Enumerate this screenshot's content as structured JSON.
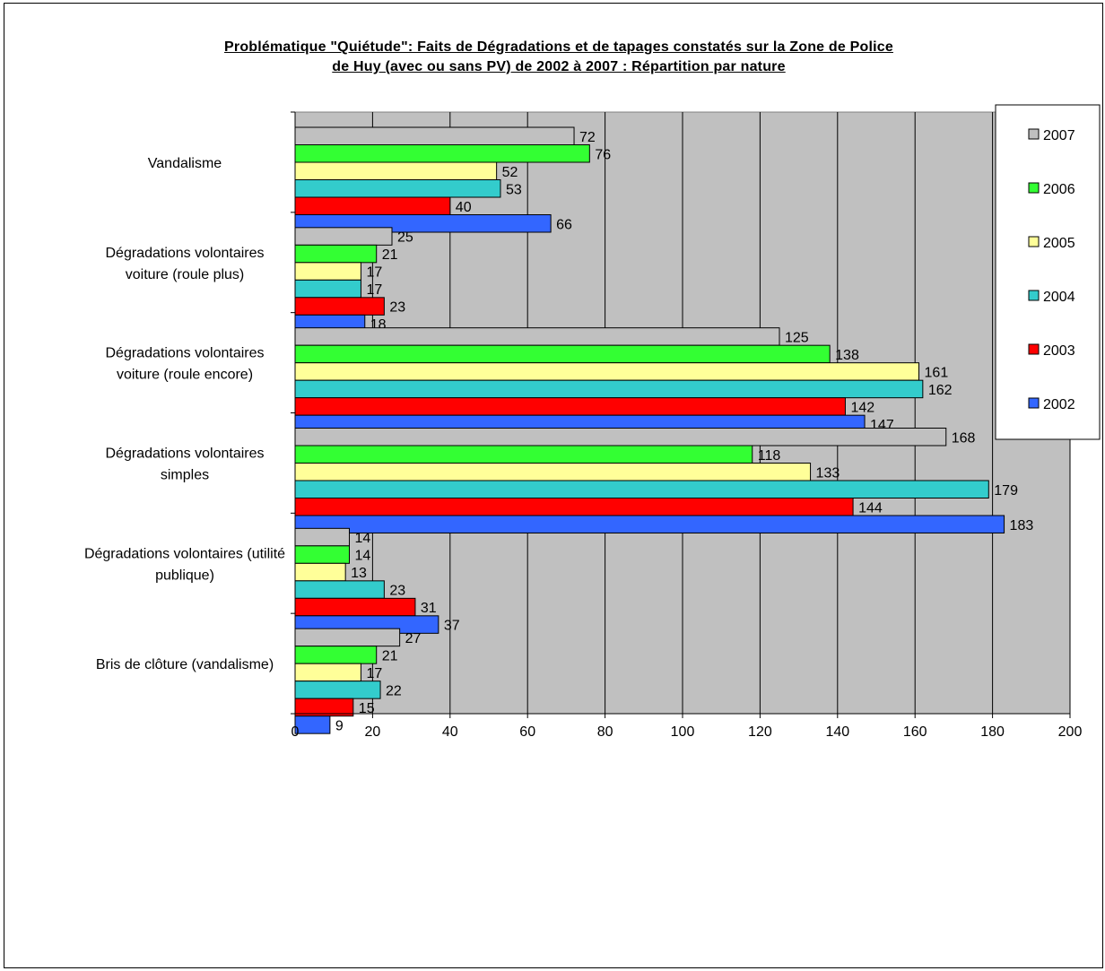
{
  "chart_data": {
    "type": "bar",
    "orientation": "horizontal",
    "title_line1": "Problématique \"Quiétude\": Faits de Dégradations et de tapages constatés sur la Zone de Police",
    "title_line2": "de Huy (avec ou sans PV) de 2002 à 2007 : Répartition par nature",
    "categories": [
      [
        "Vandalisme"
      ],
      [
        "Dégradations volontaires",
        "voiture (roule plus)"
      ],
      [
        "Dégradations volontaires",
        "voiture (roule encore)"
      ],
      [
        "Dégradations volontaires",
        "simples"
      ],
      [
        "Dégradations volontaires (utilité",
        "publique)"
      ],
      [
        "Bris de clôture (vandalisme)"
      ]
    ],
    "series": [
      {
        "name": "2007",
        "color": "#c0c0c0",
        "values": [
          72,
          25,
          125,
          168,
          14,
          27
        ]
      },
      {
        "name": "2006",
        "color": "#33ff33",
        "values": [
          76,
          21,
          138,
          118,
          14,
          21
        ]
      },
      {
        "name": "2005",
        "color": "#ffff99",
        "values": [
          52,
          17,
          161,
          133,
          13,
          17
        ]
      },
      {
        "name": "2004",
        "color": "#33cccc",
        "values": [
          53,
          17,
          162,
          179,
          23,
          22
        ]
      },
      {
        "name": "2003",
        "color": "#ff0000",
        "values": [
          40,
          23,
          142,
          144,
          31,
          15
        ]
      },
      {
        "name": "2002",
        "color": "#3366ff",
        "values": [
          66,
          18,
          147,
          183,
          37,
          9
        ]
      }
    ],
    "xlim": [
      0,
      200
    ],
    "xticks": [
      "0",
      "20",
      "40",
      "60",
      "80",
      "100",
      "120",
      "140",
      "160",
      "180",
      "200"
    ],
    "xlabel": "",
    "ylabel": "",
    "grid": true,
    "plot_background": "#c0c0c0",
    "legend_position": "right",
    "legend_order": [
      "2007",
      "2006",
      "2005",
      "2004",
      "2003",
      "2002"
    ]
  }
}
